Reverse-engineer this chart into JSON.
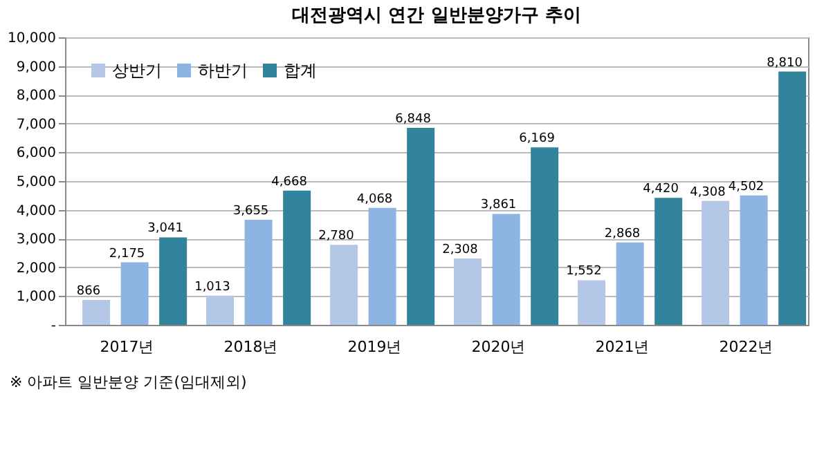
{
  "chart_data": {
    "type": "bar",
    "title": "대전광역시 연간 일반분양가구 추이",
    "categories": [
      "2017년",
      "2018년",
      "2019년",
      "2020년",
      "2021년",
      "2022년"
    ],
    "series": [
      {
        "name": "상반기",
        "color": "#b4c7e7",
        "values": [
          866,
          1013,
          2780,
          2308,
          1552,
          4308
        ],
        "value_labels": [
          "866",
          "1,013",
          "2,780",
          "2,308",
          "1,552",
          "4,308"
        ]
      },
      {
        "name": "하반기",
        "color": "#8eb4e3",
        "values": [
          2175,
          3655,
          4068,
          3861,
          2868,
          4502
        ],
        "value_labels": [
          "2,175",
          "3,655",
          "4,068",
          "3,861",
          "2,868",
          "4,502"
        ]
      },
      {
        "name": "합계",
        "color": "#31849b",
        "values": [
          3041,
          4668,
          6848,
          6169,
          4420,
          8810
        ],
        "value_labels": [
          "3,041",
          "4,668",
          "6,848",
          "6,169",
          "4,420",
          "8,810"
        ]
      }
    ],
    "ylim": [
      0,
      10000
    ],
    "yticks": [
      {
        "value": 0,
        "label": "-"
      },
      {
        "value": 1000,
        "label": "1,000"
      },
      {
        "value": 2000,
        "label": "2,000"
      },
      {
        "value": 3000,
        "label": "3,000"
      },
      {
        "value": 4000,
        "label": "4,000"
      },
      {
        "value": 5000,
        "label": "5,000"
      },
      {
        "value": 6000,
        "label": "6,000"
      },
      {
        "value": 7000,
        "label": "7,000"
      },
      {
        "value": 8000,
        "label": "8,000"
      },
      {
        "value": 9000,
        "label": "9,000"
      },
      {
        "value": 10000,
        "label": "10,000"
      }
    ],
    "grid": "y",
    "legend": "top left",
    "annotations": [
      "※ 아파트 일반분양 기준(임대제외)"
    ]
  }
}
